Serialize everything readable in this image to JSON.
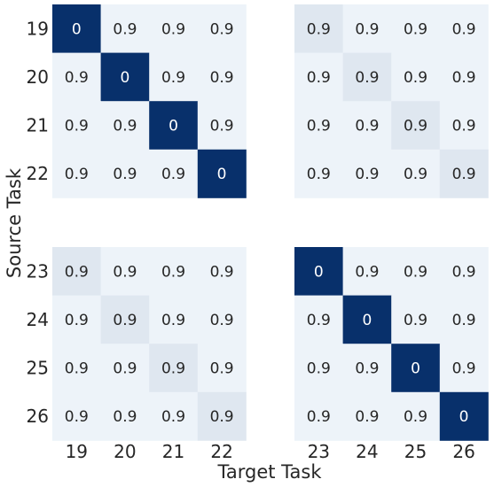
{
  "chart_data": {
    "type": "heatmap",
    "xlabel": "Target Task",
    "ylabel": "Source Task",
    "x_labels": [
      "19",
      "20",
      "21",
      "22",
      "23",
      "24",
      "25",
      "26"
    ],
    "y_labels": [
      "19",
      "20",
      "21",
      "22",
      "23",
      "24",
      "25",
      "26"
    ],
    "value_labels": [
      [
        "0",
        "0.9",
        "0.9",
        "0.9",
        "0.9",
        "0.9",
        "0.9",
        "0.9"
      ],
      [
        "0.9",
        "0",
        "0.9",
        "0.9",
        "0.9",
        "0.9",
        "0.9",
        "0.9"
      ],
      [
        "0.9",
        "0.9",
        "0",
        "0.9",
        "0.9",
        "0.9",
        "0.9",
        "0.9"
      ],
      [
        "0.9",
        "0.9",
        "0.9",
        "0",
        "0.9",
        "0.9",
        "0.9",
        "0.9"
      ],
      [
        "0.9",
        "0.9",
        "0.9",
        "0.9",
        "0",
        "0.9",
        "0.9",
        "0.9"
      ],
      [
        "0.9",
        "0.9",
        "0.9",
        "0.9",
        "0.9",
        "0",
        "0.9",
        "0.9"
      ],
      [
        "0.9",
        "0.9",
        "0.9",
        "0.9",
        "0.9",
        "0.9",
        "0",
        "0.9"
      ],
      [
        "0.9",
        "0.9",
        "0.9",
        "0.9",
        "0.9",
        "0.9",
        "0.9",
        "0"
      ]
    ],
    "shading": [
      [
        1.0,
        0.04,
        0.04,
        0.04,
        0.1,
        0.04,
        0.04,
        0.04
      ],
      [
        0.04,
        1.0,
        0.04,
        0.04,
        0.04,
        0.1,
        0.04,
        0.04
      ],
      [
        0.04,
        0.04,
        1.0,
        0.04,
        0.04,
        0.04,
        0.1,
        0.04
      ],
      [
        0.04,
        0.04,
        0.04,
        1.0,
        0.04,
        0.04,
        0.04,
        0.1
      ],
      [
        0.1,
        0.04,
        0.04,
        0.04,
        1.0,
        0.04,
        0.04,
        0.04
      ],
      [
        0.04,
        0.1,
        0.04,
        0.04,
        0.04,
        1.0,
        0.04,
        0.04
      ],
      [
        0.04,
        0.04,
        0.1,
        0.04,
        0.04,
        0.04,
        1.0,
        0.04
      ],
      [
        0.04,
        0.04,
        0.04,
        0.1,
        0.04,
        0.04,
        0.04,
        1.0
      ]
    ],
    "colormap": "Blues",
    "color_dark": "#08306b",
    "color_light": "#f7fbff",
    "text_on_dark": "#ffffff",
    "text_on_light": "#262626",
    "gridlines": false,
    "legend": "none"
  }
}
